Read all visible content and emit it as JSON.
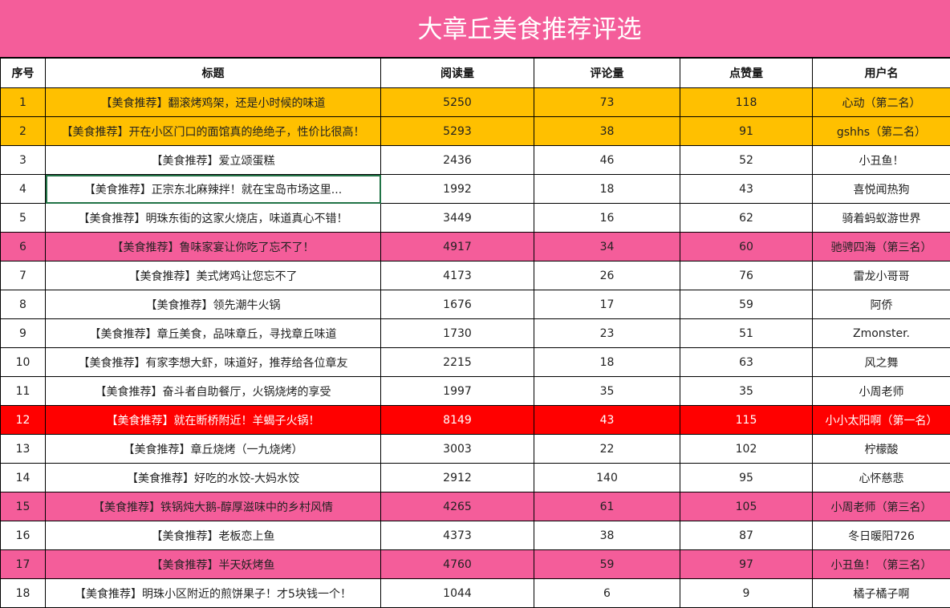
{
  "title": "大章丘美食推荐评选",
  "columns": [
    "序号",
    "标题",
    "阅读量",
    "评论量",
    "点赞量",
    "用户名"
  ],
  "rows": [
    {
      "no": "1",
      "title": "【美食推荐】翻滚烤鸡架，还是小时候的味道",
      "reads": "5250",
      "comments": "73",
      "likes": "118",
      "user": "心动（第二名）",
      "highlight": "gold"
    },
    {
      "no": "2",
      "title": "【美食推荐】开在小区门口的面馆真的绝绝子，性价比很高！",
      "reads": "5293",
      "comments": "38",
      "likes": "91",
      "user": "gshhs（第二名）",
      "highlight": "gold"
    },
    {
      "no": "3",
      "title": "【美食推荐】爱立颂蛋糕",
      "reads": "2436",
      "comments": "46",
      "likes": "52",
      "user": "小丑鱼！",
      "highlight": "white"
    },
    {
      "no": "4",
      "title": "【美食推荐】正宗东北麻辣拌！就在宝岛市场这里...",
      "reads": "1992",
      "comments": "18",
      "likes": "43",
      "user": "喜悦闻热狗",
      "highlight": "white"
    },
    {
      "no": "5",
      "title": "【美食推荐】明珠东街的这家火烧店，味道真心不错！",
      "reads": "3449",
      "comments": "16",
      "likes": "62",
      "user": "骑着蚂蚁游世界",
      "highlight": "white"
    },
    {
      "no": "6",
      "title": "【美食推荐】鲁味家宴让你吃了忘不了！",
      "reads": "4917",
      "comments": "34",
      "likes": "60",
      "user": "驰骋四海（第三名）",
      "highlight": "pink"
    },
    {
      "no": "7",
      "title": "【美食推荐】美式烤鸡让您忘不了",
      "reads": "4173",
      "comments": "26",
      "likes": "76",
      "user": "雷龙小哥哥",
      "highlight": "white"
    },
    {
      "no": "8",
      "title": "【美食推荐】领先潮牛火锅",
      "reads": "1676",
      "comments": "17",
      "likes": "59",
      "user": "阿侨",
      "highlight": "white"
    },
    {
      "no": "9",
      "title": "【美食推荐】章丘美食，品味章丘，寻找章丘味道",
      "reads": "1730",
      "comments": "23",
      "likes": "51",
      "user": "Zmonster.",
      "highlight": "white"
    },
    {
      "no": "10",
      "title": "【美食推荐】有家李想大虾，味道好，推荐给各位章友",
      "reads": "2215",
      "comments": "18",
      "likes": "63",
      "user": "风之舞",
      "highlight": "white"
    },
    {
      "no": "11",
      "title": "【美食推荐】奋斗者自助餐厅，火锅烧烤的享受",
      "reads": "1997",
      "comments": "35",
      "likes": "35",
      "user": "小周老师",
      "highlight": "white"
    },
    {
      "no": "12",
      "title": "【美食推荐】就在断桥附近！羊蝎子火锅！",
      "reads": "8149",
      "comments": "43",
      "likes": "115",
      "user": "小小太阳啊（第一名）",
      "highlight": "red"
    },
    {
      "no": "13",
      "title": "【美食推荐】章丘烧烤（一九烧烤）",
      "reads": "3003",
      "comments": "22",
      "likes": "102",
      "user": "柠檬酸",
      "highlight": "white"
    },
    {
      "no": "14",
      "title": "【美食推荐】好吃的水饺-大妈水饺",
      "reads": "2912",
      "comments": "140",
      "likes": "95",
      "user": "心怀慈悲",
      "highlight": "white"
    },
    {
      "no": "15",
      "title": "【美食推荐】铁锅炖大鹅-醇厚滋味中的乡村风情",
      "reads": "4265",
      "comments": "61",
      "likes": "105",
      "user": "小周老师（第三名）",
      "highlight": "pink"
    },
    {
      "no": "16",
      "title": "【美食推荐】老板恋上鱼",
      "reads": "4373",
      "comments": "38",
      "likes": "87",
      "user": "冬日暖阳726",
      "highlight": "white"
    },
    {
      "no": "17",
      "title": "【美食推荐】半天妖烤鱼",
      "reads": "4760",
      "comments": "59",
      "likes": "97",
      "user": "小丑鱼！（第三名）",
      "highlight": "pink"
    },
    {
      "no": "18",
      "title": "【美食推荐】明珠小区附近的煎饼果子！才5块钱一个！",
      "reads": "1044",
      "comments": "6",
      "likes": "9",
      "user": "橘子橘子啊",
      "highlight": "white"
    }
  ],
  "selected_cell": {
    "row": 3,
    "column": "title"
  },
  "colors": {
    "title_bar": "#f45d9a",
    "gold": "#ffc000",
    "pink": "#f45d9a",
    "red": "#ff0000",
    "selection": "#217346"
  }
}
